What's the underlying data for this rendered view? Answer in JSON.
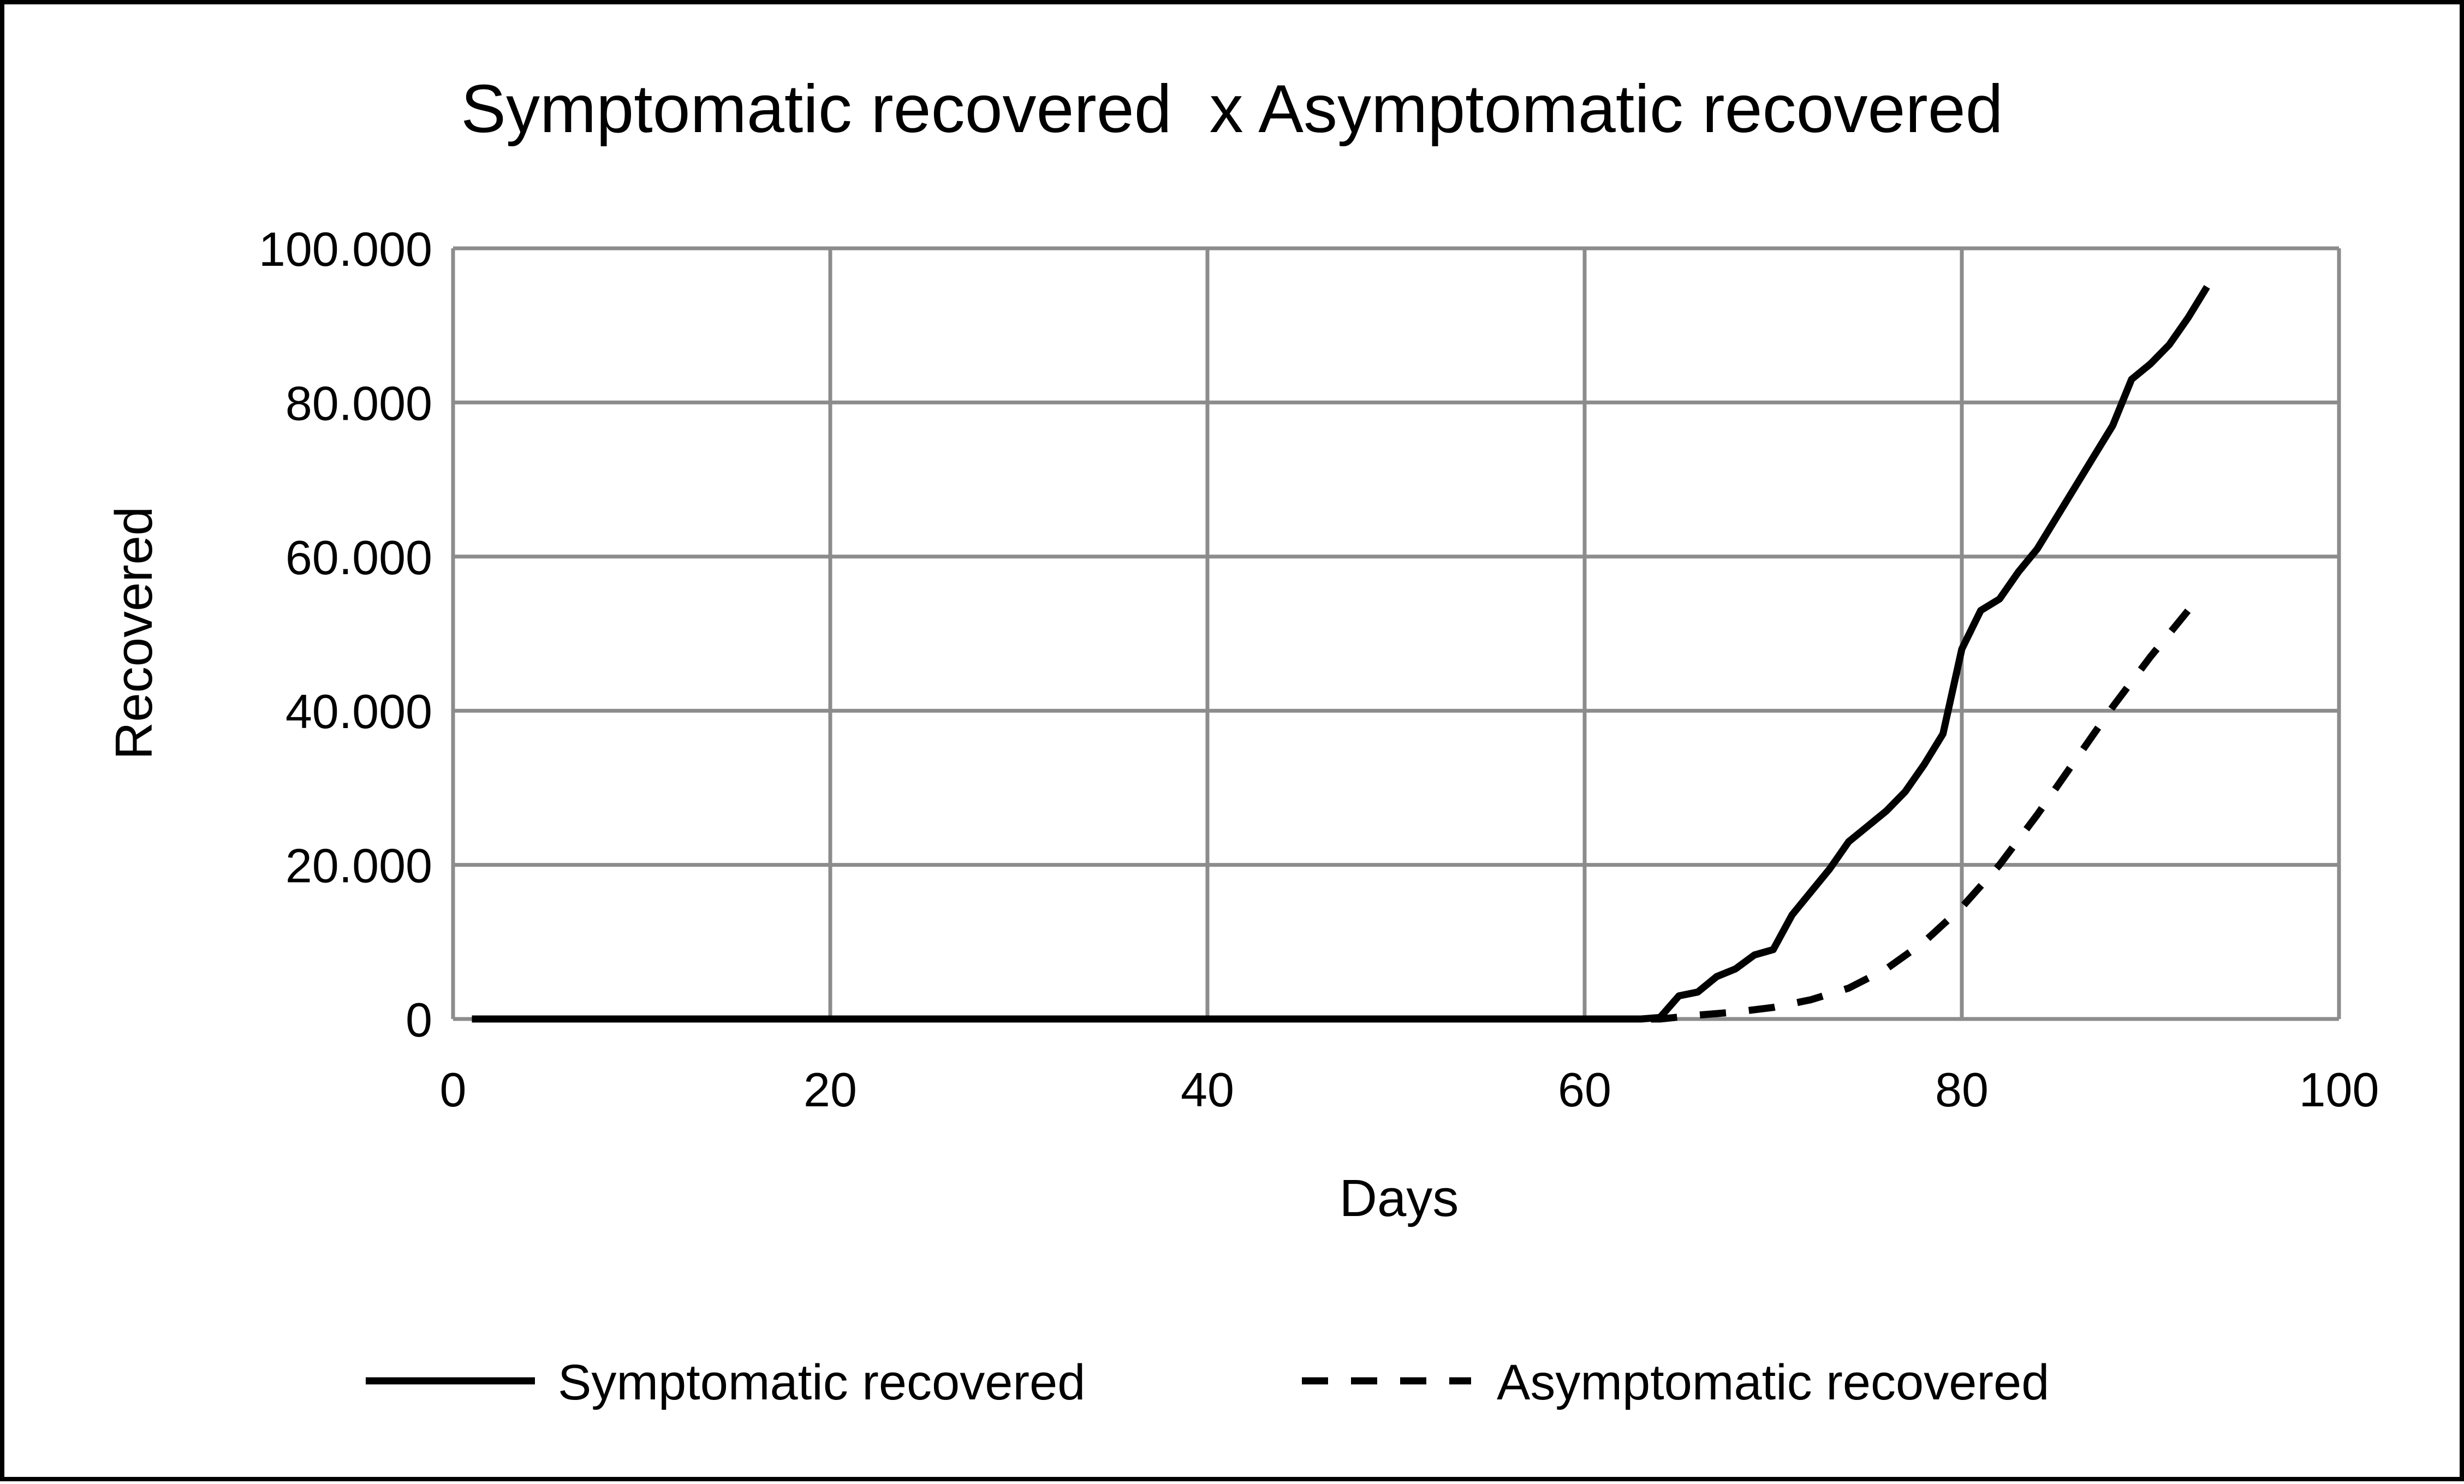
{
  "chart_data": {
    "type": "line",
    "title": "Symptomatic recovered  x Asymptomatic recovered",
    "xlabel": "Days",
    "ylabel": "Recovered",
    "xlim": [
      0,
      100
    ],
    "ylim": [
      0,
      100000
    ],
    "x_ticks": [
      0,
      20,
      40,
      60,
      80,
      100
    ],
    "y_ticks": [
      0,
      20000,
      40000,
      60000,
      80000,
      100000
    ],
    "x_tick_labels": [
      "0",
      "20",
      "40",
      "60",
      "80",
      "100"
    ],
    "y_tick_labels": [
      "0",
      "20.000",
      "40.000",
      "60.000",
      "80.000",
      "100.000"
    ],
    "grid": true,
    "legend_position": "bottom",
    "series": [
      {
        "name": "Symptomatic recovered",
        "style": "solid",
        "color": "#000000",
        "x": [
          1,
          10,
          20,
          30,
          40,
          50,
          60,
          63,
          64,
          65,
          66,
          67,
          68,
          69,
          70,
          71,
          72,
          73,
          74,
          75,
          76,
          77,
          78,
          79,
          80,
          81,
          82,
          83,
          84,
          85,
          86,
          87,
          88,
          89,
          90,
          91,
          92,
          93
        ],
        "y": [
          0,
          0,
          0,
          0,
          0,
          0,
          0,
          0,
          200,
          3000,
          3500,
          5500,
          6500,
          8300,
          9000,
          13500,
          16500,
          19500,
          23000,
          25000,
          27000,
          29500,
          33000,
          37000,
          48000,
          53000,
          54500,
          58000,
          61000,
          65000,
          69000,
          73000,
          77000,
          83000,
          85000,
          87500,
          91000,
          95000
        ]
      },
      {
        "name": "Asymptomatic recovered",
        "style": "dashed",
        "color": "#000000",
        "x": [
          1,
          10,
          20,
          30,
          40,
          50,
          60,
          64,
          66,
          68,
          70,
          72,
          74,
          76,
          78,
          80,
          82,
          84,
          86,
          88,
          90,
          92
        ],
        "y": [
          0,
          0,
          0,
          0,
          0,
          0,
          0,
          0,
          500,
          900,
          1500,
          2500,
          4000,
          6500,
          10000,
          14500,
          20000,
          26500,
          33500,
          40500,
          47000,
          53000
        ]
      }
    ]
  }
}
